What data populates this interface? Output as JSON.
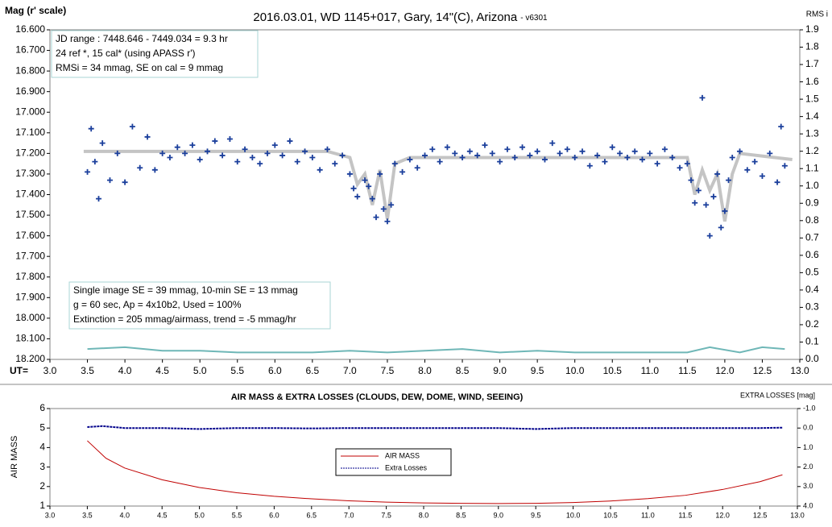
{
  "chart_data": [
    {
      "type": "scatter",
      "title": "2016.03.01,  WD 1145+017,  Gary,  14\"(C), Arizona",
      "version": "- v6301",
      "ylabel": "Mag (r' scale)",
      "y2label": "RMS i",
      "xlabel": "UT=",
      "annotations": [
        [
          "JD range  : 7448.646 - 7449.034  = 9.3 hr",
          " 24 ref *, 15 cal* (using APASS r')",
          "RMSi = 34 mmag, SE on cal = 9 mmag"
        ],
        [
          "Single image SE = 39 mmag, 10-min SE = 13 mmag",
          "g = 60 sec, Ap = 4x10b2, Used = 100%",
          "Extinction = 205 mmag/airmass, trend = -5 mmag/hr"
        ]
      ],
      "xlim": [
        3.0,
        13.0
      ],
      "xticks": [
        {
          "value": 3,
          "label": "3.0"
        },
        3.5,
        {
          "value": 4,
          "label": "4.0"
        },
        4.5,
        {
          "value": 5,
          "label": "5.0"
        },
        5.5,
        {
          "value": 6,
          "label": "6.0"
        },
        6.5,
        {
          "value": 7,
          "label": "7.0"
        },
        7.5,
        {
          "value": 8,
          "label": "8.0"
        },
        8.5,
        {
          "value": 9,
          "label": "9.0"
        },
        9.5,
        {
          "value": 10,
          "label": "10.0"
        },
        10.5,
        {
          "value": 11,
          "label": "11.0"
        },
        11.5,
        {
          "value": 12,
          "label": "12.0"
        },
        12.5,
        {
          "value": 13,
          "label": "13.0"
        }
      ],
      "ylim": [
        18.2,
        16.6
      ],
      "yticks": [
        {
          "value": 16.6,
          "label": "16.600"
        },
        {
          "value": 16.7,
          "label": "16.700"
        },
        {
          "value": 16.8,
          "label": "16.800"
        },
        {
          "value": 16.9,
          "label": "16.900"
        },
        {
          "value": 17.0,
          "label": "17.000"
        },
        {
          "value": 17.1,
          "label": "17.100"
        },
        {
          "value": 17.2,
          "label": "17.200"
        },
        {
          "value": 17.3,
          "label": "17.300"
        },
        {
          "value": 17.4,
          "label": "17.400"
        },
        {
          "value": 17.5,
          "label": "17.500"
        },
        {
          "value": 17.6,
          "label": "17.600"
        },
        {
          "value": 17.7,
          "label": "17.700"
        },
        {
          "value": 17.8,
          "label": "17.800"
        },
        {
          "value": 17.9,
          "label": "17.900"
        },
        {
          "value": 18.0,
          "label": "18.000"
        },
        {
          "value": 18.1,
          "label": "18.100"
        },
        {
          "value": 18.2,
          "label": "18.200"
        }
      ],
      "y2lim": [
        0.0,
        1.9
      ],
      "y2ticks": [
        {
          "value": 0,
          "label": "0.0"
        },
        0.1,
        0.2,
        0.3,
        0.4,
        0.5,
        0.6,
        0.7,
        0.8,
        0.9,
        {
          "value": 1,
          "label": "1.0"
        },
        1.1,
        1.2,
        1.3,
        1.4,
        1.5,
        1.6,
        1.7,
        1.8,
        1.9
      ],
      "series": [
        {
          "type": "line",
          "color": "#c4c4c4",
          "width": 4,
          "x": [
            3.45,
            6.7,
            7.0,
            7.1,
            7.2,
            7.3,
            7.4,
            7.5,
            7.6,
            7.8,
            11.5,
            11.6,
            11.7,
            11.8,
            11.9,
            12.0,
            12.1,
            12.2,
            12.9
          ],
          "values": [
            17.19,
            17.19,
            17.22,
            17.35,
            17.3,
            17.45,
            17.28,
            17.52,
            17.25,
            17.22,
            17.22,
            17.4,
            17.28,
            17.38,
            17.3,
            17.53,
            17.3,
            17.2,
            17.23
          ]
        },
        {
          "type": "scatter",
          "color": "#1b3f9c",
          "x": [
            3.5,
            3.55,
            3.6,
            3.65,
            3.7,
            3.8,
            3.9,
            4.0,
            4.1,
            4.2,
            4.3,
            4.4,
            4.5,
            4.6,
            4.7,
            4.8,
            4.9,
            5.0,
            5.1,
            5.2,
            5.3,
            5.4,
            5.5,
            5.6,
            5.7,
            5.8,
            5.9,
            6.0,
            6.1,
            6.2,
            6.3,
            6.4,
            6.5,
            6.6,
            6.7,
            6.8,
            6.9,
            7.0,
            7.05,
            7.1,
            7.2,
            7.25,
            7.3,
            7.35,
            7.4,
            7.45,
            7.5,
            7.55,
            7.6,
            7.7,
            7.8,
            7.9,
            8.0,
            8.1,
            8.2,
            8.3,
            8.4,
            8.5,
            8.6,
            8.7,
            8.8,
            8.9,
            9.0,
            9.1,
            9.2,
            9.3,
            9.4,
            9.5,
            9.6,
            9.7,
            9.8,
            9.9,
            10.0,
            10.1,
            10.2,
            10.3,
            10.4,
            10.5,
            10.6,
            10.7,
            10.8,
            10.9,
            11.0,
            11.1,
            11.2,
            11.3,
            11.4,
            11.5,
            11.55,
            11.6,
            11.65,
            11.7,
            11.75,
            11.8,
            11.85,
            11.9,
            11.95,
            12.0,
            12.05,
            12.1,
            12.2,
            12.3,
            12.4,
            12.5,
            12.6,
            12.7,
            12.75,
            12.8
          ],
          "values": [
            17.29,
            17.08,
            17.24,
            17.42,
            17.15,
            17.33,
            17.2,
            17.34,
            17.07,
            17.27,
            17.12,
            17.28,
            17.2,
            17.22,
            17.17,
            17.2,
            17.16,
            17.23,
            17.19,
            17.14,
            17.21,
            17.13,
            17.24,
            17.18,
            17.22,
            17.25,
            17.2,
            17.16,
            17.21,
            17.14,
            17.24,
            17.19,
            17.22,
            17.28,
            17.18,
            17.25,
            17.21,
            17.3,
            17.37,
            17.41,
            17.33,
            17.36,
            17.42,
            17.51,
            17.3,
            17.47,
            17.53,
            17.45,
            17.25,
            17.29,
            17.23,
            17.27,
            17.21,
            17.18,
            17.24,
            17.17,
            17.2,
            17.22,
            17.19,
            17.21,
            17.16,
            17.2,
            17.24,
            17.18,
            17.22,
            17.17,
            17.21,
            17.19,
            17.23,
            17.15,
            17.2,
            17.18,
            17.22,
            17.19,
            17.26,
            17.21,
            17.24,
            17.17,
            17.2,
            17.22,
            17.19,
            17.23,
            17.2,
            17.25,
            17.18,
            17.22,
            17.27,
            17.25,
            17.33,
            17.44,
            17.38,
            16.93,
            17.45,
            17.6,
            17.41,
            17.3,
            17.56,
            17.48,
            17.33,
            17.22,
            17.19,
            17.28,
            17.24,
            17.31,
            17.2,
            17.34,
            17.07,
            17.26
          ]
        },
        {
          "type": "line",
          "axis": "y2",
          "color": "#6fb7b7",
          "width": 2,
          "x": [
            3.5,
            4.0,
            4.5,
            5.0,
            5.5,
            6.0,
            6.5,
            7.0,
            7.5,
            8.0,
            8.5,
            9.0,
            9.5,
            10.0,
            10.5,
            11.0,
            11.5,
            11.8,
            12.2,
            12.5,
            12.8
          ],
          "values": [
            0.06,
            0.07,
            0.05,
            0.05,
            0.04,
            0.04,
            0.04,
            0.05,
            0.04,
            0.05,
            0.06,
            0.04,
            0.05,
            0.04,
            0.04,
            0.04,
            0.04,
            0.07,
            0.04,
            0.07,
            0.06
          ]
        }
      ]
    },
    {
      "type": "line",
      "title": "AIR MASS & EXTRA LOSSES (CLOUDS, DEW, DOME, WIND, SEEING)",
      "ylabel": "AIR MASS",
      "y2label": "EXTRA LOSSES [mag]",
      "xlim": [
        3.0,
        13.0
      ],
      "xticks": [
        {
          "value": 3,
          "label": "3.0"
        },
        3.5,
        {
          "value": 4,
          "label": "4.0"
        },
        4.5,
        {
          "value": 5,
          "label": "5.0"
        },
        5.5,
        {
          "value": 6,
          "label": "6.0"
        },
        6.5,
        {
          "value": 7,
          "label": "7.0"
        },
        7.5,
        {
          "value": 8,
          "label": "8.0"
        },
        8.5,
        {
          "value": 9,
          "label": "9.0"
        },
        9.5,
        {
          "value": 10,
          "label": "10.0"
        },
        10.5,
        {
          "value": 11,
          "label": "11.0"
        },
        11.5,
        {
          "value": 12,
          "label": "12.0"
        },
        12.5,
        {
          "value": 13,
          "label": "13.0"
        }
      ],
      "ylim": [
        1,
        6
      ],
      "yticks": [
        1,
        2,
        3,
        4,
        5,
        6
      ],
      "y2lim": [
        4.0,
        -1.0
      ],
      "y2ticks": [
        {
          "value": -1,
          "label": "-1.0"
        },
        {
          "value": 0,
          "label": "0.0"
        },
        {
          "value": 1,
          "label": "1.0"
        },
        {
          "value": 2,
          "label": "2.0"
        },
        {
          "value": 3,
          "label": "3.0"
        },
        {
          "value": 4,
          "label": "4.0"
        }
      ],
      "series": [
        {
          "name": "AIR MASS",
          "color": "#c00000",
          "width": 1,
          "x": [
            3.5,
            3.75,
            4.0,
            4.5,
            5.0,
            5.5,
            6.0,
            6.5,
            7.0,
            7.5,
            8.0,
            8.5,
            9.0,
            9.5,
            10.0,
            10.5,
            11.0,
            11.5,
            12.0,
            12.5,
            12.8
          ],
          "values": [
            4.35,
            3.45,
            2.95,
            2.35,
            1.95,
            1.68,
            1.5,
            1.37,
            1.27,
            1.2,
            1.16,
            1.14,
            1.13,
            1.14,
            1.18,
            1.26,
            1.38,
            1.55,
            1.85,
            2.25,
            2.6
          ]
        },
        {
          "name": "Extra Losses",
          "axis": "y2",
          "color": "#00008b",
          "width": 2,
          "dashed": true,
          "x": [
            3.5,
            3.7,
            4.0,
            4.5,
            5.0,
            5.5,
            6.0,
            6.5,
            7.0,
            7.5,
            8.0,
            8.5,
            9.0,
            9.5,
            10.0,
            10.5,
            11.0,
            11.5,
            12.0,
            12.5,
            12.8
          ],
          "values": [
            -0.05,
            -0.1,
            0.0,
            0.0,
            0.05,
            0.0,
            0.0,
            0.02,
            0.0,
            0.0,
            0.0,
            0.0,
            0.0,
            0.05,
            0.0,
            0.0,
            0.0,
            0.0,
            0.0,
            0.0,
            -0.02
          ]
        }
      ]
    }
  ]
}
